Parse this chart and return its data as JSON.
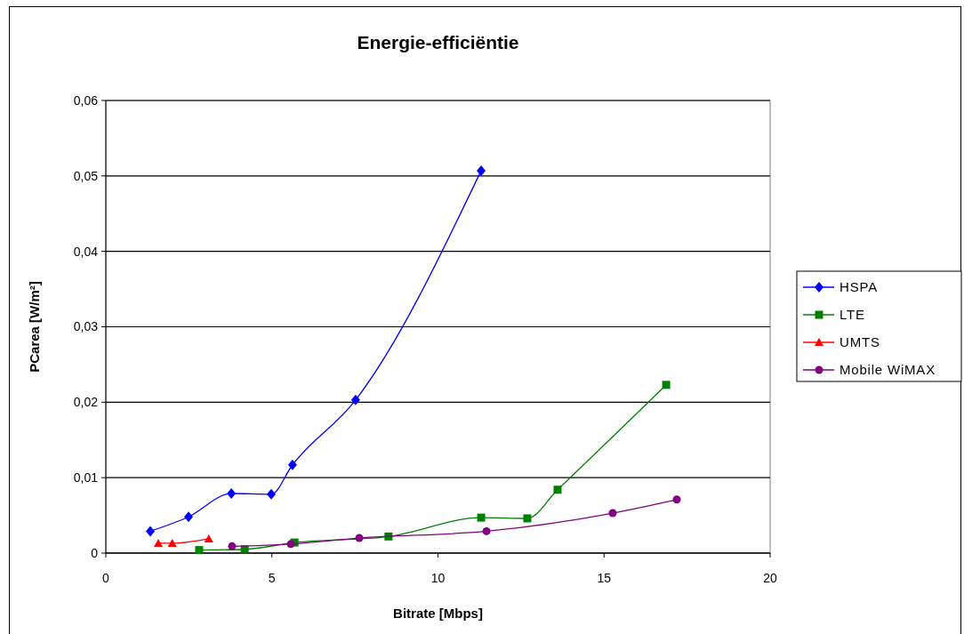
{
  "chart_data": {
    "type": "line",
    "title": "Energie-efficiëntie",
    "xlabel": "Bitrate [Mbps]",
    "ylabel": "PCarea [W/m²]",
    "xlim": [
      0,
      20
    ],
    "xticks": [
      0,
      5,
      10,
      15,
      20
    ],
    "ylim": [
      0,
      0.06
    ],
    "yticks": [
      {
        "value": 0,
        "label": "0"
      },
      {
        "value": 0.01,
        "label": "0,01"
      },
      {
        "value": 0.02,
        "label": "0,02"
      },
      {
        "value": 0.03,
        "label": "0,03"
      },
      {
        "value": 0.04,
        "label": "0,04"
      },
      {
        "value": 0.05,
        "label": "0,05"
      },
      {
        "value": 0.06,
        "label": "0,06"
      }
    ],
    "grid": "y",
    "legend": "right",
    "series": [
      {
        "name": "HSPA",
        "color": "#0000ff",
        "marker": "diamond",
        "x": [
          1.34,
          2.49,
          3.78,
          4.98,
          5.62,
          7.52,
          11.3
        ],
        "values": [
          0.0029,
          0.0048,
          0.0079,
          0.0078,
          0.0117,
          0.0203,
          0.0507
        ]
      },
      {
        "name": "LTE",
        "color": "#008000",
        "marker": "square",
        "x": [
          2.81,
          4.18,
          5.68,
          8.51,
          11.3,
          12.69,
          13.6,
          16.87
        ],
        "values": [
          0.0004,
          0.0005,
          0.0014,
          0.0022,
          0.0047,
          0.0046,
          0.0084,
          0.0223
        ]
      },
      {
        "name": "UMTS",
        "color": "#ff0000",
        "marker": "triangle",
        "x": [
          1.58,
          2.0,
          3.1
        ],
        "values": [
          0.0013,
          0.0013,
          0.0019
        ]
      },
      {
        "name": "Mobile WiMAX",
        "color": "#800080",
        "marker": "circle",
        "x": [
          3.8,
          5.57,
          7.63,
          11.46,
          15.26,
          17.19
        ],
        "values": [
          0.0009,
          0.0012,
          0.002,
          0.0029,
          0.0053,
          0.0071
        ]
      }
    ]
  }
}
